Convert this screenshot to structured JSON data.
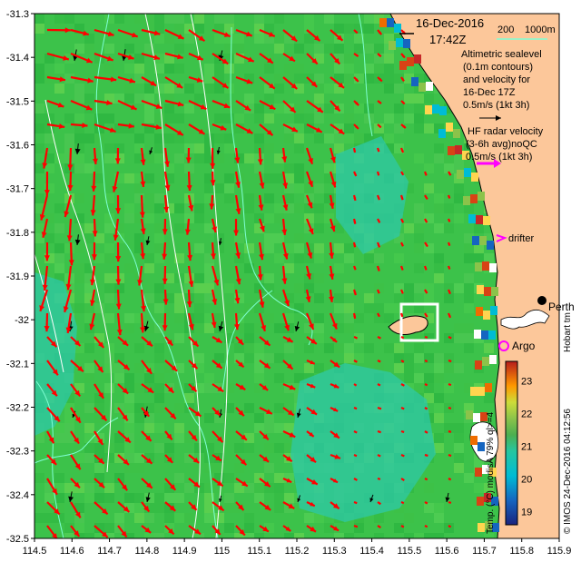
{
  "header": {
    "date": "16-Dec-2016",
    "time": "17:42Z",
    "scale_label": "200",
    "scale_unit": "1000m"
  },
  "legend": {
    "altimetry": [
      "Altimetric sealevel",
      "(0.1m contours)",
      "and velocity for",
      "16-Dec 17Z",
      "0.5m/s (1kt 3h)"
    ],
    "hf_radar": [
      "HF radar velocity",
      "(3-6h avg)noQC",
      "0.5m/s (1kt 3h)"
    ],
    "drifter": "drifter",
    "argo": "Argo",
    "city": "Perth",
    "hobart": "Hobart tm",
    "credit": "© IMOS 24-Dec-2016 04:12:56",
    "colorbar_label": "Temp. (°C) modisA 79% ql>=4"
  },
  "colors": {
    "land": "#fcc79a",
    "current_arrow": "#ff0000",
    "altimetry_arrow": "#000000",
    "drifter": "#ff00ff",
    "isobath": "#7fffd4",
    "sealevel_contour": "#ffffff"
  },
  "axes": {
    "x_ticks": [
      "114.5",
      "114.6",
      "114.7",
      "114.8",
      "114.9",
      "115",
      "115.1",
      "115.2",
      "115.3",
      "115.4",
      "115.5",
      "115.6",
      "115.7",
      "115.8",
      "115.9"
    ],
    "y_ticks": [
      "-31.3",
      "-31.4",
      "-31.5",
      "-31.6",
      "-31.7",
      "-31.8",
      "-31.9",
      "-32",
      "-32.1",
      "-32.2",
      "-32.3",
      "-32.4",
      "-32.5"
    ]
  },
  "colorbar": {
    "ticks": [
      "19",
      "20",
      "21",
      "22",
      "23"
    ],
    "min": 18.6,
    "max": 23.6
  }
}
